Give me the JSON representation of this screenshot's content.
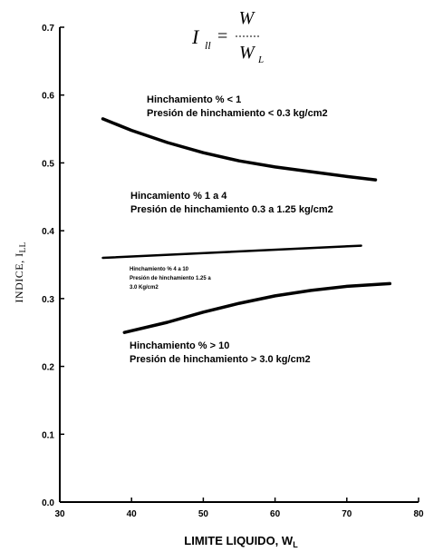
{
  "chart_data": {
    "type": "line",
    "title": "",
    "formula": {
      "lhs": "I",
      "lhs_sub": "ll",
      "num": "W",
      "den": "W",
      "den_sub": "L"
    },
    "xlabel": "LIMITE LIQUIDO, W",
    "xlabel_sub": "L",
    "ylabel": "INDICE, I",
    "ylabel_sub": "LL",
    "xlim": [
      30,
      80
    ],
    "ylim": [
      0.0,
      0.7
    ],
    "x_ticks": [
      "30",
      "40",
      "50",
      "60",
      "70",
      "80"
    ],
    "y_ticks": [
      "0.0",
      "0.1",
      "0.2",
      "0.3",
      "0.4",
      "0.5",
      "0.6",
      "0.7"
    ],
    "series": [
      {
        "x": [
          36,
          40,
          45,
          50,
          55,
          60,
          65,
          70,
          74
        ],
        "y": [
          0.565,
          0.548,
          0.53,
          0.515,
          0.503,
          0.494,
          0.487,
          0.48,
          0.475
        ]
      },
      {
        "x": [
          36,
          72
        ],
        "y": [
          0.36,
          0.378
        ]
      },
      {
        "x": [
          39,
          45,
          50,
          55,
          60,
          65,
          70,
          76
        ],
        "y": [
          0.25,
          0.265,
          0.28,
          0.293,
          0.304,
          0.312,
          0.318,
          0.322
        ]
      }
    ],
    "annotations": [
      {
        "lines": [
          "Hinchamiento % < 1",
          "Presión de hinchamiento < 0.3 kg/cm2"
        ]
      },
      {
        "lines": [
          "Hincamiento % 1 a 4",
          "Presión de hinchamiento 0.3 a 1.25 kg/cm2"
        ]
      },
      {
        "lines": [
          "Hinchamiento % 4 a 10",
          "Presión de hinchamiento 1.25 a",
          "3.0 Kg/cm2"
        ]
      },
      {
        "lines": [
          "Hinchamiento % > 10",
          "Presión de hinchamiento > 3.0 kg/cm2"
        ]
      }
    ]
  }
}
